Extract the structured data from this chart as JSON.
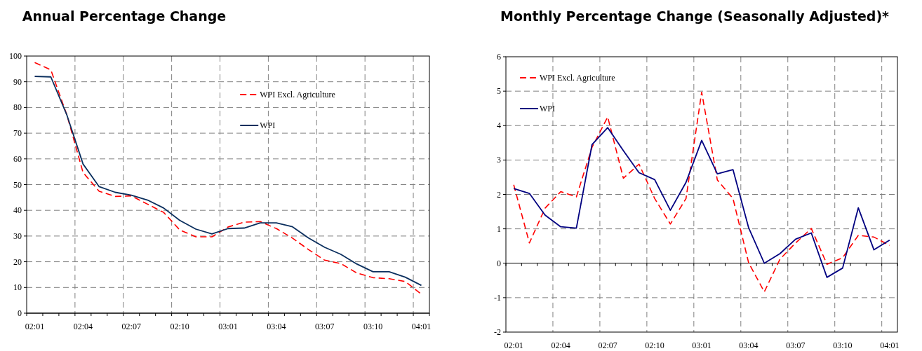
{
  "chart_data": [
    {
      "type": "line",
      "title": "Annual Percentage Change",
      "categories": [
        "02:01",
        null,
        null,
        "02:04",
        null,
        null,
        "02:07",
        null,
        null,
        "02:10",
        null,
        null,
        "03:01",
        null,
        null,
        "03:04",
        null,
        null,
        "03:07",
        null,
        null,
        "03:10",
        null,
        null,
        "04:01"
      ],
      "ylim": [
        0,
        100
      ],
      "yticks": [
        0,
        10,
        20,
        30,
        40,
        50,
        60,
        70,
        80,
        90,
        100
      ],
      "grid": true,
      "legend": "top right",
      "series": [
        {
          "name": "WPI Excl. Agriculture",
          "color": "#ff0000",
          "line_style": "dashed",
          "values": [
            97.5,
            94.6,
            77,
            54.7,
            47.4,
            45.4,
            45.6,
            42.4,
            39.2,
            32.4,
            29.7,
            29.7,
            33.5,
            35.4,
            35.6,
            32.9,
            29.2,
            24.7,
            20.6,
            19.3,
            15.6,
            13.8,
            13.4,
            12.3,
            7.4
          ]
        },
        {
          "name": "WPI",
          "color": "#0b2f5e",
          "line_style": "solid",
          "values": [
            92.1,
            91.9,
            77,
            58,
            49.2,
            47,
            45.9,
            44,
            40.9,
            36.1,
            32.7,
            30.8,
            32.9,
            33.1,
            35.1,
            35.1,
            33.6,
            29.2,
            25.6,
            22.9,
            19.1,
            16.1,
            16.1,
            14,
            10.8
          ]
        }
      ]
    },
    {
      "type": "line",
      "title": "Monthly Percentage Change (Seasonally Adjusted)*",
      "categories": [
        "02:01",
        null,
        null,
        "02:04",
        null,
        null,
        "02:07",
        null,
        null,
        "02:10",
        null,
        null,
        "03:01",
        null,
        null,
        "03:04",
        null,
        null,
        "03:07",
        null,
        null,
        "03:10",
        null,
        null,
        "04:01"
      ],
      "ylim": [
        -2,
        6
      ],
      "yticks": [
        -2,
        -1,
        0,
        1,
        2,
        3,
        4,
        5,
        6
      ],
      "grid": true,
      "legend": "top left",
      "series": [
        {
          "name": "WPI Excl. Agriculture",
          "color": "#ff0000",
          "line_style": "dashed",
          "values": [
            2.28,
            0.59,
            1.6,
            2.08,
            1.93,
            3.37,
            4.25,
            2.47,
            2.88,
            1.88,
            1.14,
            1.88,
            4.97,
            2.42,
            1.88,
            0.01,
            -0.83,
            0.12,
            0.59,
            1.01,
            -0.03,
            0.16,
            0.81,
            0.76,
            0.52
          ]
        },
        {
          "name": "WPI",
          "color": "#000080",
          "line_style": "solid",
          "values": [
            2.17,
            2.03,
            1.4,
            1.06,
            1.02,
            3.45,
            3.94,
            3.27,
            2.63,
            2.43,
            1.54,
            2.35,
            3.57,
            2.6,
            2.72,
            1.03,
            0,
            0.28,
            0.7,
            0.88,
            -0.41,
            -0.14,
            1.61,
            0.39,
            0.67
          ]
        }
      ]
    }
  ]
}
